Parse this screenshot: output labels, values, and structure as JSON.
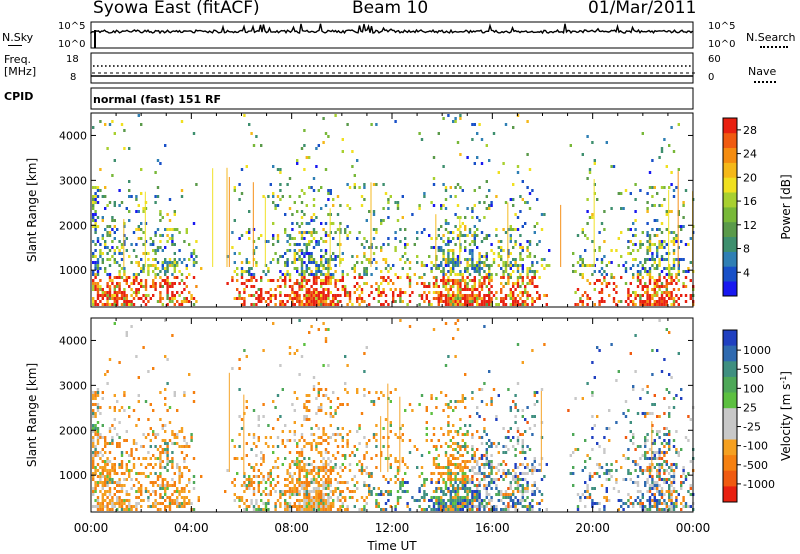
{
  "header": {
    "station": "Syowa East (fitACF)",
    "beam": "Beam 10",
    "date": "01/Mar/2011"
  },
  "noise_panel": {
    "left_label": "N.Sky",
    "right_label": "N.Search",
    "left_ticks": [
      "10^5",
      "10^0"
    ],
    "right_ticks": [
      "10^5",
      "10^0"
    ]
  },
  "freq_panel": {
    "left_label_line1": "Freq.",
    "left_label_line2": "[MHz]",
    "left_ticks": [
      18,
      8
    ],
    "right_label": "Nave",
    "right_ticks": [
      60,
      0
    ]
  },
  "cpid_panel": {
    "label": "CPID",
    "mode": "normal (fast) 151 RF"
  },
  "chart_data": [
    {
      "type": "heatmap",
      "quantity": "Power",
      "ylabel": "Slant Range [km]",
      "xlabel": "",
      "ylim": [
        180,
        4500
      ],
      "yticks": [
        1000,
        2000,
        3000,
        4000
      ],
      "xlim_hours": [
        0,
        24
      ],
      "colorbar_label": "Power [dB]",
      "colorbar_ticks": [
        "4",
        "8",
        "12",
        "16",
        "20",
        "24",
        "28"
      ],
      "colorbar_colors": [
        "#1818f0",
        "#1850c8",
        "#2f7fb4",
        "#3e8f6e",
        "#5a9a4a",
        "#78b838",
        "#a8d030",
        "#f0e020",
        "#f5b818",
        "#f58c10",
        "#f05a10",
        "#e82010"
      ],
      "colorbar_range": [
        0,
        30
      ]
    },
    {
      "type": "heatmap",
      "quantity": "Velocity",
      "ylabel": "Slant Range [km]",
      "xlabel": "Time UT",
      "ylim": [
        180,
        4500
      ],
      "yticks": [
        1000,
        2000,
        3000,
        4000
      ],
      "xlim_hours": [
        0,
        24
      ],
      "xticks": [
        "00:00",
        "04:00",
        "08:00",
        "12:00",
        "16:00",
        "20:00",
        "00:00"
      ],
      "colorbar_label": "Velocity [m s^-1]",
      "colorbar_ticks": [
        "1000",
        "500",
        "100",
        "25",
        "-25",
        "-100",
        "-500",
        "-1000"
      ],
      "colorbar_colors": [
        "#2040c0",
        "#2f6ab0",
        "#3f8f80",
        "#4ea858",
        "#5cc040",
        "#c8c8c8",
        "#c8c8c8",
        "#f5a020",
        "#f58010",
        "#f05a10",
        "#e82010"
      ]
    }
  ]
}
